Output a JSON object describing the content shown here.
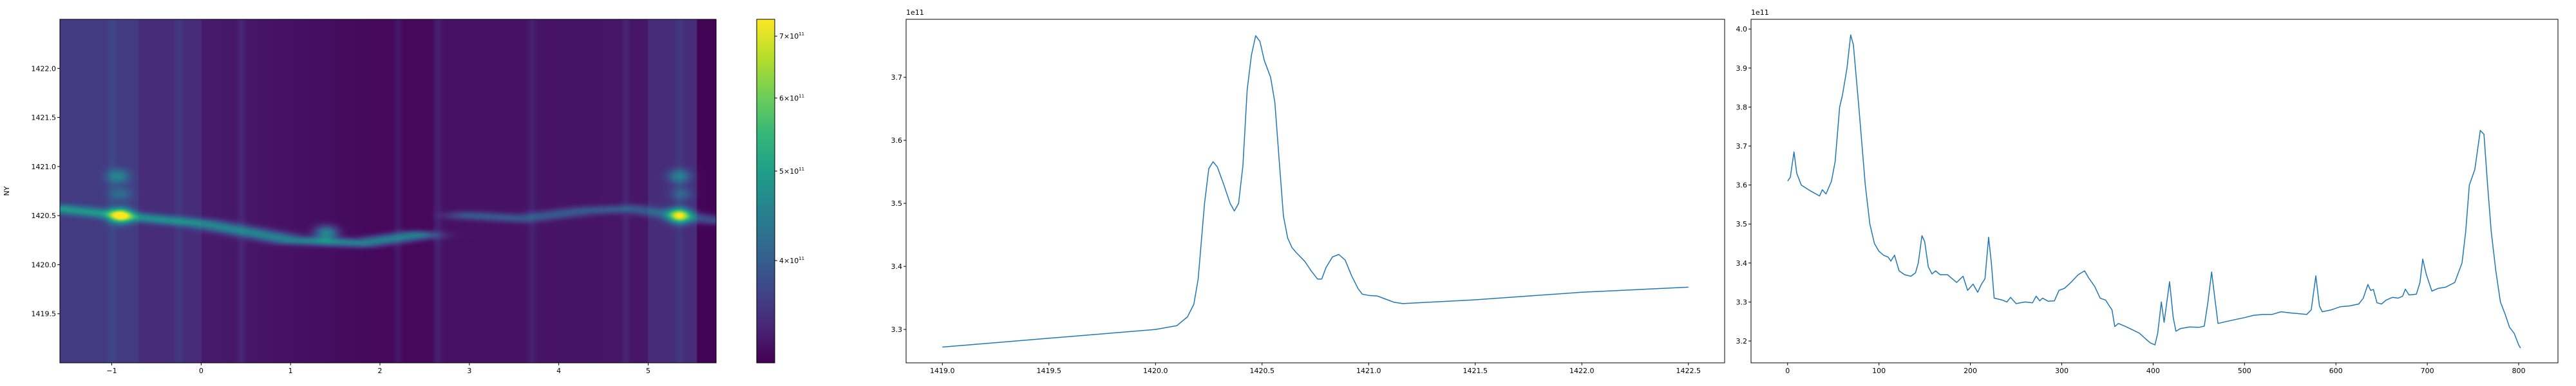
{
  "chart_data": [
    {
      "type": "heatmap",
      "ylabel": "NY",
      "xlabel": "",
      "xlim": [
        -1.58,
        5.76
      ],
      "ylim": [
        1419.0,
        1422.5
      ],
      "xticks": [
        -1,
        0,
        1,
        2,
        3,
        4,
        5
      ],
      "yticks": [
        1419.5,
        1420.0,
        1420.5,
        1421.0,
        1421.5,
        1422.0
      ],
      "colormap": "viridis",
      "colorbar": {
        "scale": "log",
        "range": [
          310000000000.0,
          730000000000.0
        ],
        "ticks": [
          400000000000.0,
          500000000000.0,
          600000000000.0,
          700000000000.0
        ],
        "tick_labels": [
          {
            "mantissa": "4",
            "base": "10",
            "exp": "11"
          },
          {
            "mantissa": "5",
            "base": "10",
            "exp": "11"
          },
          {
            "mantissa": "6",
            "base": "10",
            "exp": "11"
          },
          {
            "mantissa": "7",
            "base": "10",
            "exp": "11"
          }
        ]
      },
      "hotspots": [
        {
          "x": -0.9,
          "y": 1420.5,
          "value": 730000000000.0
        },
        {
          "x": -0.93,
          "y": 1420.9,
          "value": 500000000000.0
        },
        {
          "x": -0.9,
          "y": 1420.72,
          "value": 460000000000.0
        },
        {
          "x": 1.4,
          "y": 1420.32,
          "value": 540000000000.0
        },
        {
          "x": 5.35,
          "y": 1420.5,
          "value": 720000000000.0
        },
        {
          "x": 5.35,
          "y": 1420.9,
          "value": 500000000000.0
        },
        {
          "x": 5.37,
          "y": 1420.72,
          "value": 460000000000.0
        }
      ],
      "ridges": [
        {
          "points": [
            [
              -1.58,
              1420.57
            ],
            [
              -0.9,
              1420.5
            ],
            [
              0.0,
              1420.42
            ],
            [
              0.6,
              1420.32
            ],
            [
              1.0,
              1420.25
            ],
            [
              1.8,
              1420.22
            ],
            [
              2.4,
              1420.3
            ]
          ],
          "value": 430000000000.0
        },
        {
          "points": [
            [
              3.0,
              1420.5
            ],
            [
              3.6,
              1420.47
            ],
            [
              4.3,
              1420.55
            ],
            [
              4.8,
              1420.57
            ],
            [
              5.35,
              1420.5
            ],
            [
              5.76,
              1420.45
            ]
          ],
          "value": 370000000000.0
        }
      ]
    },
    {
      "type": "line",
      "offset_label": "1e11",
      "xlim": [
        1418.83,
        1422.67
      ],
      "ylim": [
        3.247,
        3.792
      ],
      "xticks": [
        1419.0,
        1419.5,
        1420.0,
        1420.5,
        1421.0,
        1421.5,
        1422.0,
        1422.5
      ],
      "xtick_labels": [
        "1419.0",
        "1419.5",
        "1420.0",
        "1420.5",
        "1421.0",
        "1421.5",
        "1422.0",
        "1422.5"
      ],
      "yticks": [
        3.3,
        3.4,
        3.5,
        3.6,
        3.7
      ],
      "ytick_labels": [
        "3.3",
        "3.4",
        "3.5",
        "3.6",
        "3.7"
      ],
      "color": "#1f77b4",
      "x": [
        1419.0,
        1419.5,
        1420.0,
        1420.1,
        1420.15,
        1420.18,
        1420.2,
        1420.23,
        1420.25,
        1420.27,
        1420.29,
        1420.32,
        1420.35,
        1420.37,
        1420.39,
        1420.41,
        1420.43,
        1420.45,
        1420.47,
        1420.49,
        1420.51,
        1420.54,
        1420.56,
        1420.58,
        1420.6,
        1420.62,
        1420.64,
        1420.66,
        1420.7,
        1420.73,
        1420.76,
        1420.78,
        1420.8,
        1420.83,
        1420.86,
        1420.89,
        1420.92,
        1420.95,
        1420.97,
        1421.0,
        1421.04,
        1421.08,
        1421.12,
        1421.16,
        1421.5,
        1422.0,
        1422.5
      ],
      "y": [
        3.272,
        3.286,
        3.3,
        3.306,
        3.32,
        3.34,
        3.38,
        3.5,
        3.555,
        3.566,
        3.558,
        3.53,
        3.5,
        3.488,
        3.5,
        3.56,
        3.68,
        3.735,
        3.766,
        3.757,
        3.727,
        3.7,
        3.66,
        3.57,
        3.48,
        3.445,
        3.43,
        3.422,
        3.408,
        3.393,
        3.38,
        3.38,
        3.398,
        3.415,
        3.419,
        3.41,
        3.385,
        3.365,
        3.356,
        3.354,
        3.353,
        3.348,
        3.343,
        3.341,
        3.347,
        3.359,
        3.367
      ]
    },
    {
      "type": "line",
      "offset_label": "1e11",
      "xlim": [
        -40,
        843
      ],
      "ylim": [
        3.144,
        4.025
      ],
      "xticks": [
        0,
        100,
        200,
        300,
        400,
        500,
        600,
        700,
        800
      ],
      "xtick_labels": [
        "0",
        "100",
        "200",
        "300",
        "400",
        "500",
        "600",
        "700",
        "800"
      ],
      "yticks": [
        3.2,
        3.3,
        3.4,
        3.5,
        3.6,
        3.7,
        3.8,
        3.9,
        4.0
      ],
      "ytick_labels": [
        "3.2",
        "3.3",
        "3.4",
        "3.5",
        "3.6",
        "3.7",
        "3.8",
        "3.9",
        "4.0"
      ],
      "color": "#1f77b4",
      "x": [
        0,
        3,
        7,
        10,
        15,
        25,
        35,
        38,
        42,
        48,
        52,
        57,
        60,
        65,
        69,
        72,
        78,
        85,
        90,
        95,
        100,
        105,
        110,
        113,
        117,
        122,
        128,
        135,
        140,
        143,
        147,
        150,
        154,
        158,
        162,
        167,
        175,
        180,
        185,
        192,
        197,
        203,
        208,
        212,
        216,
        220,
        223,
        226,
        235,
        240,
        244,
        250,
        260,
        268,
        272,
        276,
        279,
        285,
        292,
        297,
        303,
        310,
        318,
        325,
        330,
        336,
        342,
        348,
        352,
        355,
        358,
        362,
        370,
        378,
        385,
        392,
        397,
        402,
        405,
        409,
        412,
        418,
        422,
        425,
        430,
        440,
        450,
        456,
        460,
        464,
        468,
        471,
        480,
        490,
        500,
        510,
        520,
        530,
        540,
        550,
        560,
        568,
        573,
        578,
        582,
        585,
        595,
        605,
        615,
        625,
        630,
        635,
        638,
        641,
        645,
        650,
        655,
        662,
        668,
        673,
        676,
        680,
        688,
        692,
        695,
        699,
        705,
        712,
        720,
        730,
        738,
        742,
        746,
        752,
        758,
        762,
        766,
        770,
        775,
        780,
        785,
        790,
        795,
        800,
        802
      ],
      "y": [
        3.61,
        3.62,
        3.685,
        3.63,
        3.6,
        3.585,
        3.572,
        3.588,
        3.577,
        3.61,
        3.66,
        3.8,
        3.83,
        3.9,
        3.985,
        3.96,
        3.8,
        3.6,
        3.5,
        3.45,
        3.43,
        3.42,
        3.415,
        3.405,
        3.42,
        3.38,
        3.37,
        3.366,
        3.375,
        3.4,
        3.47,
        3.455,
        3.39,
        3.372,
        3.38,
        3.37,
        3.37,
        3.36,
        3.35,
        3.366,
        3.33,
        3.346,
        3.325,
        3.345,
        3.36,
        3.466,
        3.4,
        3.31,
        3.305,
        3.3,
        3.312,
        3.296,
        3.3,
        3.298,
        3.315,
        3.303,
        3.31,
        3.302,
        3.303,
        3.33,
        3.335,
        3.35,
        3.37,
        3.38,
        3.36,
        3.34,
        3.31,
        3.305,
        3.29,
        3.28,
        3.237,
        3.245,
        3.237,
        3.228,
        3.22,
        3.205,
        3.195,
        3.19,
        3.22,
        3.3,
        3.248,
        3.352,
        3.26,
        3.225,
        3.232,
        3.236,
        3.235,
        3.238,
        3.3,
        3.377,
        3.3,
        3.245,
        3.25,
        3.255,
        3.26,
        3.266,
        3.268,
        3.268,
        3.275,
        3.272,
        3.27,
        3.268,
        3.28,
        3.367,
        3.29,
        3.275,
        3.28,
        3.288,
        3.29,
        3.295,
        3.31,
        3.345,
        3.33,
        3.332,
        3.298,
        3.295,
        3.305,
        3.312,
        3.31,
        3.315,
        3.333,
        3.318,
        3.32,
        3.35,
        3.41,
        3.37,
        3.328,
        3.335,
        3.338,
        3.35,
        3.4,
        3.48,
        3.6,
        3.64,
        3.74,
        3.73,
        3.6,
        3.48,
        3.38,
        3.3,
        3.27,
        3.235,
        3.22,
        3.19,
        3.182
      ]
    }
  ]
}
